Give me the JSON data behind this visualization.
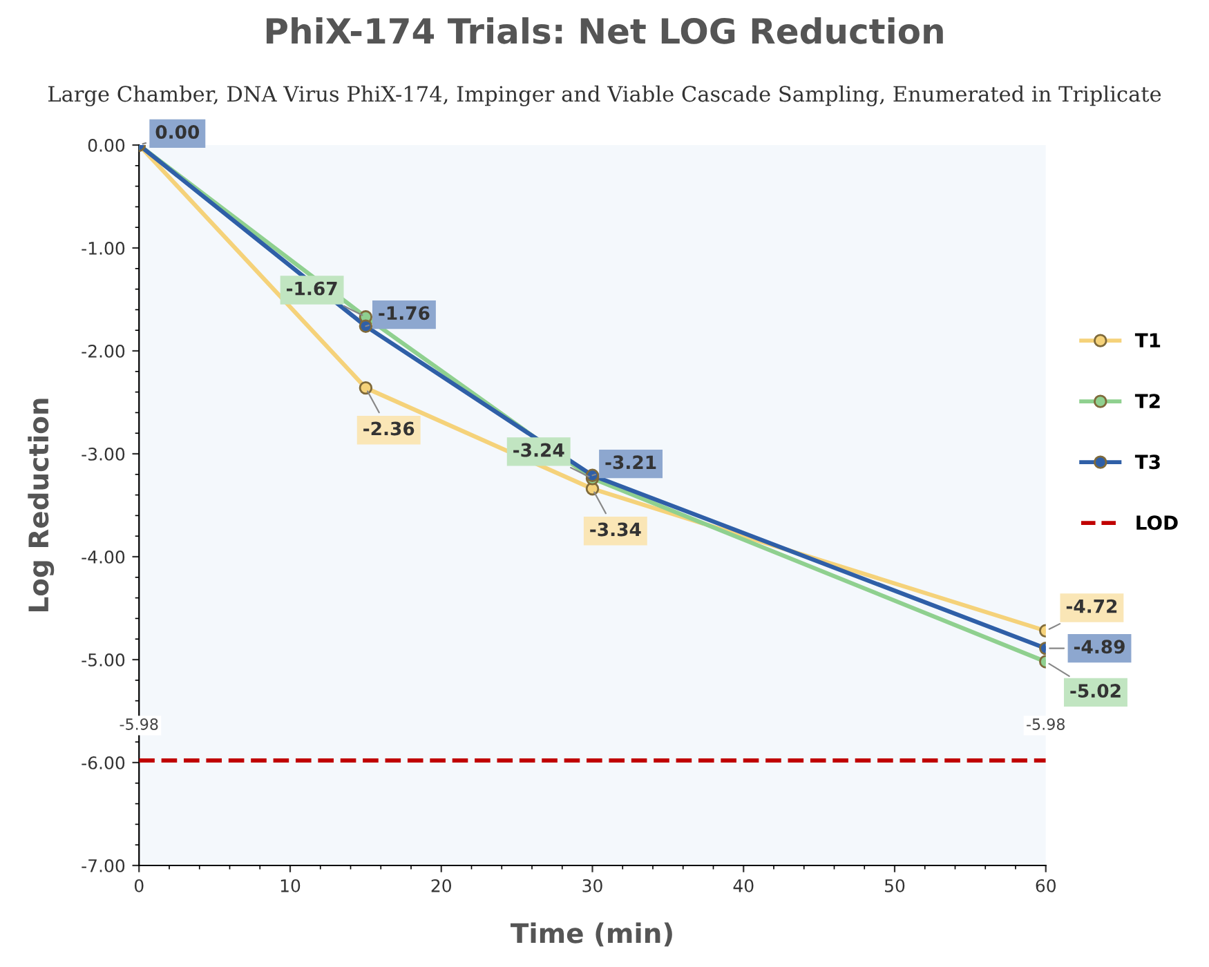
{
  "chart_data": {
    "type": "line",
    "title": "PhiX-174 Trials: Net LOG Reduction",
    "subtitle": "Large Chamber, DNA Virus PhiX-174, Impinger and Viable Cascade Sampling, Enumerated in Triplicate",
    "xlabel": "Time (min)",
    "ylabel": "Log Reduction",
    "x": [
      0,
      15,
      30,
      60
    ],
    "series": [
      {
        "name": "T1",
        "color": "#f5d27a",
        "values": [
          0,
          -2.36,
          -3.34,
          -4.72
        ],
        "value_labels": [
          null,
          "-2.36",
          "-3.34",
          "-4.72"
        ]
      },
      {
        "name": "T2",
        "color": "#8fd08f",
        "values": [
          0,
          -1.67,
          -3.24,
          -5.02
        ],
        "value_labels": [
          null,
          "-1.67",
          "-3.24",
          "-5.02"
        ]
      },
      {
        "name": "T3",
        "color": "#2f5fa7",
        "values": [
          0,
          -1.76,
          -3.21,
          -4.89
        ],
        "value_labels": [
          "0.00",
          "-1.76",
          "-3.21",
          "-4.89"
        ]
      },
      {
        "name": "LOD",
        "color": "#c00000",
        "x": [
          0,
          60
        ],
        "values": [
          -5.98,
          -5.98
        ],
        "line_style": "dashed",
        "marker": "none",
        "value_labels": [
          "-5.98",
          "-5.98"
        ]
      }
    ],
    "marker": "circle",
    "line_style": "solid",
    "xlim": [
      0,
      60
    ],
    "xticks": [
      0,
      10,
      20,
      30,
      40,
      50,
      60
    ],
    "ylim": [
      -7,
      0
    ],
    "yticks": [
      {
        "value": 0,
        "label": "0.00"
      },
      {
        "value": -1,
        "label": "-1.00"
      },
      {
        "value": -2,
        "label": "-2.00"
      },
      {
        "value": -3,
        "label": "-3.00"
      },
      {
        "value": -4,
        "label": "-4.00"
      },
      {
        "value": -5,
        "label": "-5.00"
      },
      {
        "value": -6,
        "label": "-6.00"
      },
      {
        "value": -7,
        "label": "-7.00"
      }
    ],
    "grid": false,
    "legend": "right"
  }
}
